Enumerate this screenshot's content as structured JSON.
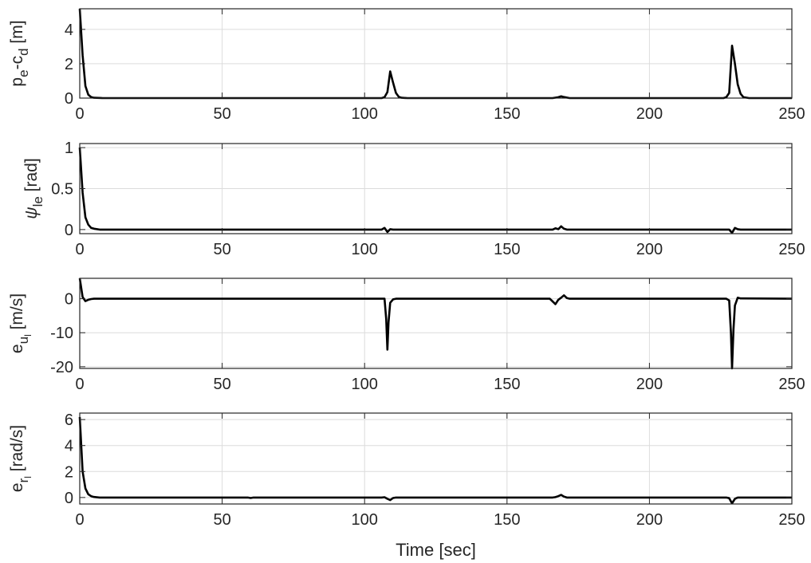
{
  "chart_data": [
    {
      "type": "line",
      "ylabel_parts": [
        {
          "t": "p",
          "shift": "base"
        },
        {
          "t": "e",
          "shift": "sub"
        },
        {
          "t": "-c",
          "shift": "base"
        },
        {
          "t": "d",
          "shift": "sub"
        },
        {
          "t": " [m]",
          "shift": "base"
        }
      ],
      "xlim": [
        0,
        250
      ],
      "ylim": [
        0,
        5.2
      ],
      "xticks": [
        0,
        50,
        100,
        150,
        200,
        250
      ],
      "yticks": [
        0,
        2,
        4
      ],
      "grid": true,
      "series": [
        {
          "x": [
            0,
            1,
            2,
            3,
            4,
            5,
            8,
            20,
            100,
            106,
            107,
            108,
            109,
            110,
            111,
            112,
            113,
            115,
            166,
            168,
            169,
            170,
            172,
            200,
            226,
            227,
            228,
            229,
            230,
            231,
            232,
            233,
            235,
            250
          ],
          "y": [
            5.2,
            2.5,
            0.7,
            0.2,
            0.06,
            0.02,
            0,
            0,
            0,
            0,
            0.05,
            0.35,
            1.55,
            0.9,
            0.3,
            0.07,
            0.02,
            0,
            0,
            0.05,
            0.1,
            0.06,
            0,
            0,
            0,
            0.05,
            0.3,
            3.05,
            2.0,
            0.8,
            0.25,
            0.05,
            0,
            0
          ]
        }
      ]
    },
    {
      "type": "line",
      "ylabel_parts": [
        {
          "t": "ψ",
          "shift": "base",
          "italic": true
        },
        {
          "t": "le",
          "shift": "sub"
        },
        {
          "t": " [rad]",
          "shift": "base"
        }
      ],
      "xlim": [
        0,
        250
      ],
      "ylim": [
        -0.05,
        1.05
      ],
      "xticks": [
        0,
        50,
        100,
        150,
        200,
        250
      ],
      "yticks": [
        0,
        0.5,
        1
      ],
      "ytick_labels": [
        "0",
        "0.5",
        "1"
      ],
      "grid": true,
      "series": [
        {
          "x": [
            0,
            1,
            2,
            3,
            4,
            5,
            7,
            10,
            60,
            106,
            107,
            108,
            109,
            110,
            166,
            167,
            168,
            169,
            170,
            171,
            228,
            229,
            230,
            231,
            232,
            250
          ],
          "y": [
            1.0,
            0.45,
            0.15,
            0.06,
            0.02,
            0.01,
            0,
            0,
            0,
            0,
            0.02,
            -0.03,
            0.005,
            0,
            0,
            0.015,
            0.005,
            0.04,
            0.01,
            0,
            0,
            -0.04,
            0.02,
            0.005,
            0,
            0
          ]
        }
      ]
    },
    {
      "type": "line",
      "ylabel_parts": [
        {
          "t": "e",
          "shift": "base"
        },
        {
          "t": "u",
          "shift": "sub"
        },
        {
          "t": "l",
          "shift": "subsub"
        },
        {
          "t": " [m/s]",
          "shift": "base"
        }
      ],
      "xlim": [
        0,
        250
      ],
      "ylim": [
        -20.5,
        6
      ],
      "xticks": [
        0,
        50,
        100,
        150,
        200,
        250
      ],
      "yticks": [
        0,
        -10,
        -20
      ],
      "grid": true,
      "series": [
        {
          "x": [
            0,
            1,
            2,
            3,
            4,
            5,
            10,
            106,
            107,
            107.6,
            108,
            108.4,
            109,
            110,
            111,
            165,
            166,
            167,
            168,
            169,
            170,
            171,
            172,
            227,
            228,
            228.6,
            229,
            229.5,
            230,
            231,
            232,
            250
          ],
          "y": [
            6,
            0.5,
            -0.7,
            -0.3,
            -0.1,
            0,
            0,
            0,
            0,
            -6,
            -15,
            -7,
            -1.2,
            -0.2,
            0,
            0,
            -0.8,
            -1.6,
            -0.3,
            0.3,
            1.0,
            0.2,
            0,
            0,
            -0.5,
            -10,
            -20.5,
            -9,
            -2,
            0.3,
            0.1,
            0
          ]
        }
      ]
    },
    {
      "type": "line",
      "ylabel_parts": [
        {
          "t": "e",
          "shift": "base"
        },
        {
          "t": "r",
          "shift": "sub"
        },
        {
          "t": "l",
          "shift": "subsub"
        },
        {
          "t": " [rad/s]",
          "shift": "base"
        }
      ],
      "xlim": [
        0,
        250
      ],
      "ylim": [
        -0.5,
        6.5
      ],
      "xticks": [
        0,
        50,
        100,
        150,
        200,
        250
      ],
      "yticks": [
        0,
        2,
        4,
        6
      ],
      "grid": true,
      "xlabel": "Time [sec]",
      "series": [
        {
          "x": [
            0,
            1,
            2,
            3,
            4,
            5,
            7,
            10,
            59,
            60,
            61,
            106,
            107,
            108,
            109,
            110,
            111,
            166,
            167,
            168,
            169,
            170,
            171,
            227,
            228,
            229,
            230,
            231,
            250
          ],
          "y": [
            6.2,
            2.0,
            0.7,
            0.25,
            0.1,
            0.04,
            0,
            0,
            0,
            -0.04,
            0,
            0,
            0.02,
            -0.1,
            -0.2,
            -0.04,
            0,
            0,
            0.03,
            0.1,
            0.2,
            0.07,
            0,
            0,
            -0.05,
            -0.45,
            -0.1,
            0,
            0
          ]
        }
      ]
    }
  ]
}
